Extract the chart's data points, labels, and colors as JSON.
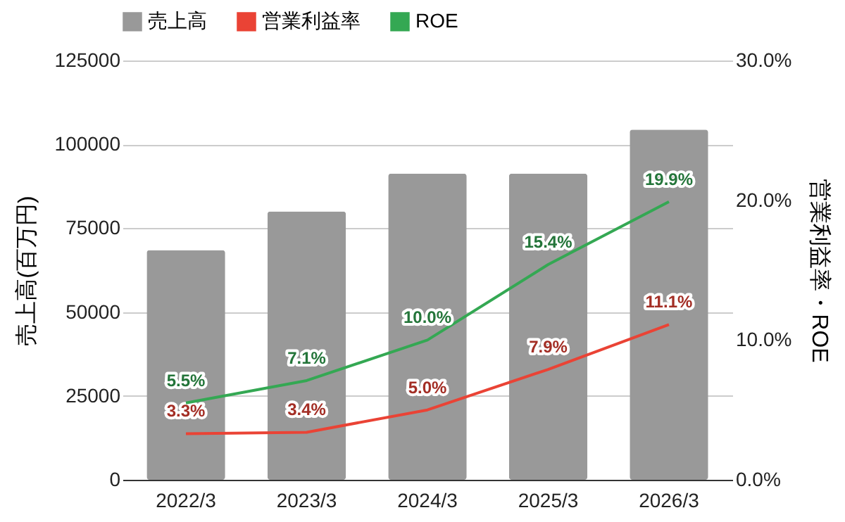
{
  "chart_data": {
    "type": "bar",
    "categories": [
      "2022/3",
      "2023/3",
      "2024/3",
      "2025/3",
      "2026/3"
    ],
    "ylabel": "売上高(百万円)",
    "y2label": "営業利益率・ROE",
    "ylim": [
      0,
      125000
    ],
    "yticks": [
      0,
      25000,
      50000,
      75000,
      100000,
      125000
    ],
    "y2lim": [
      0,
      30
    ],
    "y2ticks": [
      {
        "value": 0,
        "label": "0.0%"
      },
      {
        "value": 10,
        "label": "10.0%"
      },
      {
        "value": 20,
        "label": "20.0%"
      },
      {
        "value": 30,
        "label": "30.0%"
      }
    ],
    "grid": "y",
    "legend": "top",
    "series": [
      {
        "name": "売上高",
        "color": "#999999",
        "values": [
          68500,
          80000,
          91300,
          91300,
          104400
        ]
      },
      {
        "name": "営業利益率",
        "type": "line",
        "axis": "y2",
        "color": "#ea4335",
        "values": [
          3.3,
          3.4,
          5.0,
          7.9,
          11.1
        ],
        "value_labels": [
          "3.3%",
          "3.4%",
          "5.0%",
          "7.9%",
          "11.1%"
        ]
      },
      {
        "name": "ROE",
        "type": "line",
        "axis": "y2",
        "color": "#34a853",
        "values": [
          5.5,
          7.1,
          10.0,
          15.4,
          19.9
        ],
        "value_labels": [
          "5.5%",
          "7.1%",
          "10.0%",
          "15.4%",
          "19.9%"
        ]
      }
    ]
  }
}
